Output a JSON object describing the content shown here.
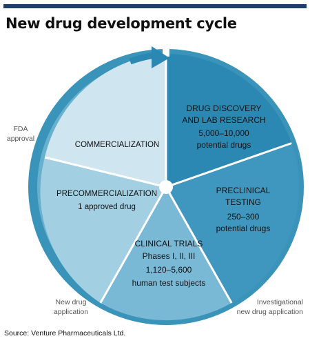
{
  "title": "New drug development cycle",
  "source": "Source: Venture Pharmaceuticals Ltd.",
  "colors": {
    "bar": "#1e3f6e",
    "ring": "#3a93b8",
    "ring_light": "#68b1ce",
    "drug_discovery": "#2a88b2",
    "preclinical": "#3f97bf",
    "clinical": "#79b9d5",
    "precommercialization": "#a3cfe2",
    "commercialization": "#cfe6f0",
    "arrow": "#2a88b2",
    "side_text": "#555555"
  },
  "segments": {
    "drug_discovery": {
      "line1": "DRUG DISCOVERY",
      "line2": "AND LAB RESEARCH",
      "line3": "5,000–10,000",
      "line4": "potential drugs"
    },
    "preclinical": {
      "line1": "PRECLINICAL",
      "line2": "TESTING",
      "line3": "250–300",
      "line4": "potential drugs"
    },
    "clinical": {
      "line1": "CLINICAL TRIALS",
      "line2": "Phases I, II, III",
      "line3": "1,120–5,600",
      "line4": "human test subjects"
    },
    "precommercialization": {
      "line1": "PRECOMMERCIALIZATION",
      "line2": "1 approved drug"
    },
    "commercialization": {
      "line1": "COMMERCIALIZATION"
    }
  },
  "milestones": {
    "fda": {
      "line1": "FDA",
      "line2": "approval"
    },
    "nda": {
      "line1": "New drug",
      "line2": "application"
    },
    "ind": {
      "line1": "Investigational",
      "line2": "new drug application"
    }
  }
}
